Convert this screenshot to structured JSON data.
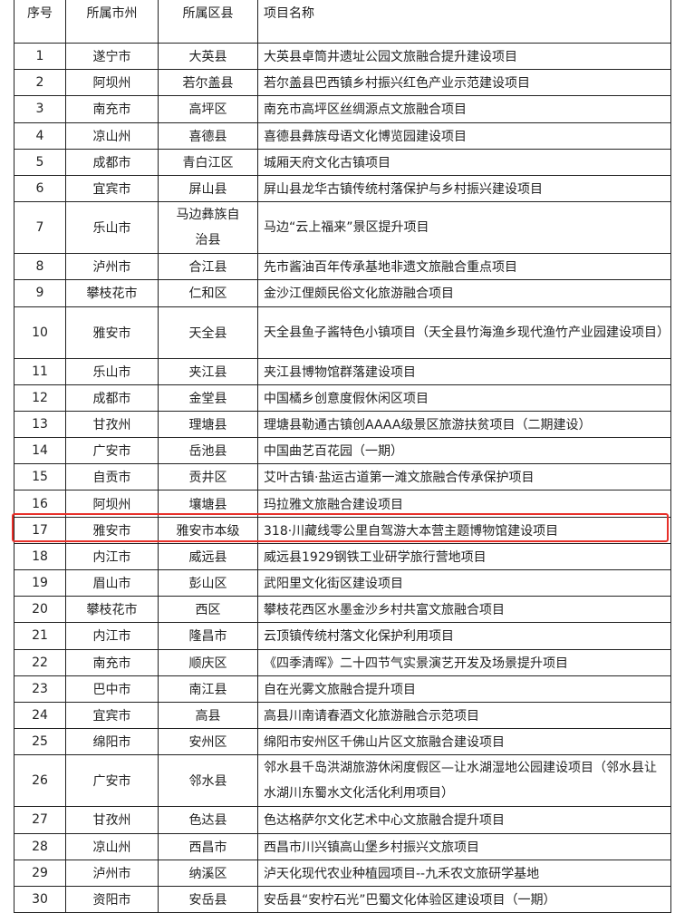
{
  "table": {
    "headers": [
      "序号",
      "所属市州",
      "所属区县",
      "项目名称"
    ],
    "rows": [
      [
        "1",
        "遂宁市",
        "大英县",
        "大英县卓筒井遗址公园文旅融合提升建设项目"
      ],
      [
        "2",
        "阿坝州",
        "若尔盖县",
        "若尔盖县巴西镇乡村振兴红色产业示范建设项目"
      ],
      [
        "3",
        "南充市",
        "高坪区",
        "南充市高坪区丝绸源点文旅融合项目"
      ],
      [
        "4",
        "凉山州",
        "喜德县",
        "喜德县彝族母语文化博览园建设项目"
      ],
      [
        "5",
        "成都市",
        "青白江区",
        "城厢天府文化古镇项目"
      ],
      [
        "6",
        "宜宾市",
        "屏山县",
        "屏山县龙华古镇传统村落保护与乡村振兴建设项目"
      ],
      [
        "7",
        "乐山市",
        "马边彝族自治县",
        "马边“云上福来”景区提升项目"
      ],
      [
        "8",
        "泸州市",
        "合江县",
        "先市酱油百年传承基地非遗文旅融合重点项目"
      ],
      [
        "9",
        "攀枝花市",
        "仁和区",
        "金沙江俚颇民俗文化旅游融合项目"
      ],
      [
        "10",
        "雅安市",
        "天全县",
        "天全县鱼子酱特色小镇项目（天全县竹海渔乡现代渔竹产业园建设项目）"
      ],
      [
        "11",
        "乐山市",
        "夹江县",
        "夹江县博物馆群落建设项目"
      ],
      [
        "12",
        "成都市",
        "金堂县",
        "中国橘乡创意度假休闲区项目"
      ],
      [
        "13",
        "甘孜州",
        "理塘县",
        "理塘县勒通古镇创AAAA级景区旅游扶贫项目（二期建设）"
      ],
      [
        "14",
        "广安市",
        "岳池县",
        "中国曲艺百花园（一期）"
      ],
      [
        "15",
        "自贡市",
        "贡井区",
        "艾叶古镇·盐运古道第一滩文旅融合传承保护项目"
      ],
      [
        "16",
        "阿坝州",
        "壤塘县",
        "玛拉雅文旅融合建设项目"
      ],
      [
        "17",
        "雅安市",
        "雅安市本级",
        "318·川藏线零公里自驾游大本营主题博物馆建设项目"
      ],
      [
        "18",
        "内江市",
        "威远县",
        "威远县1929钢铁工业研学旅行营地项目"
      ],
      [
        "19",
        "眉山市",
        "彭山区",
        "武阳里文化街区建设项目"
      ],
      [
        "20",
        "攀枝花市",
        "西区",
        "攀枝花西区水墨金沙乡村共富文旅融合项目"
      ],
      [
        "21",
        "内江市",
        "隆昌市",
        "云顶镇传统村落文化保护利用项目"
      ],
      [
        "22",
        "南充市",
        "顺庆区",
        "《四季清晖》二十四节气实景演艺开发及场景提升项目"
      ],
      [
        "23",
        "巴中市",
        "南江县",
        "自在光雾文旅融合提升项目"
      ],
      [
        "24",
        "宜宾市",
        "高县",
        "高县川南请春酒文化旅游融合示范项目"
      ],
      [
        "25",
        "绵阳市",
        "安州区",
        "绵阳市安州区千佛山片区文旅融合建设项目"
      ],
      [
        "26",
        "广安市",
        "邻水县",
        "邻水县千岛洪湖旅游休闲度假区—让水湖湿地公园建设项目（邻水县让水湖川东蜀水文化活化利用项目）"
      ],
      [
        "27",
        "甘孜州",
        "色达县",
        "色达格萨尔文化艺术中心文旅融合提升项目"
      ],
      [
        "28",
        "凉山州",
        "西昌市",
        "西昌市川兴镇高山堡乡村振兴文旅项目"
      ],
      [
        "29",
        "泸州市",
        "纳溪区",
        "泸天化现代农业种植园项目--九禾农文旅研学基地"
      ],
      [
        "30",
        "资阳市",
        "安岳县",
        "安岳县“安柠石光”巴蜀文化体验区建设项目（一期）"
      ]
    ],
    "highlighted_row": "17",
    "highlight_color": "#e8302a"
  }
}
